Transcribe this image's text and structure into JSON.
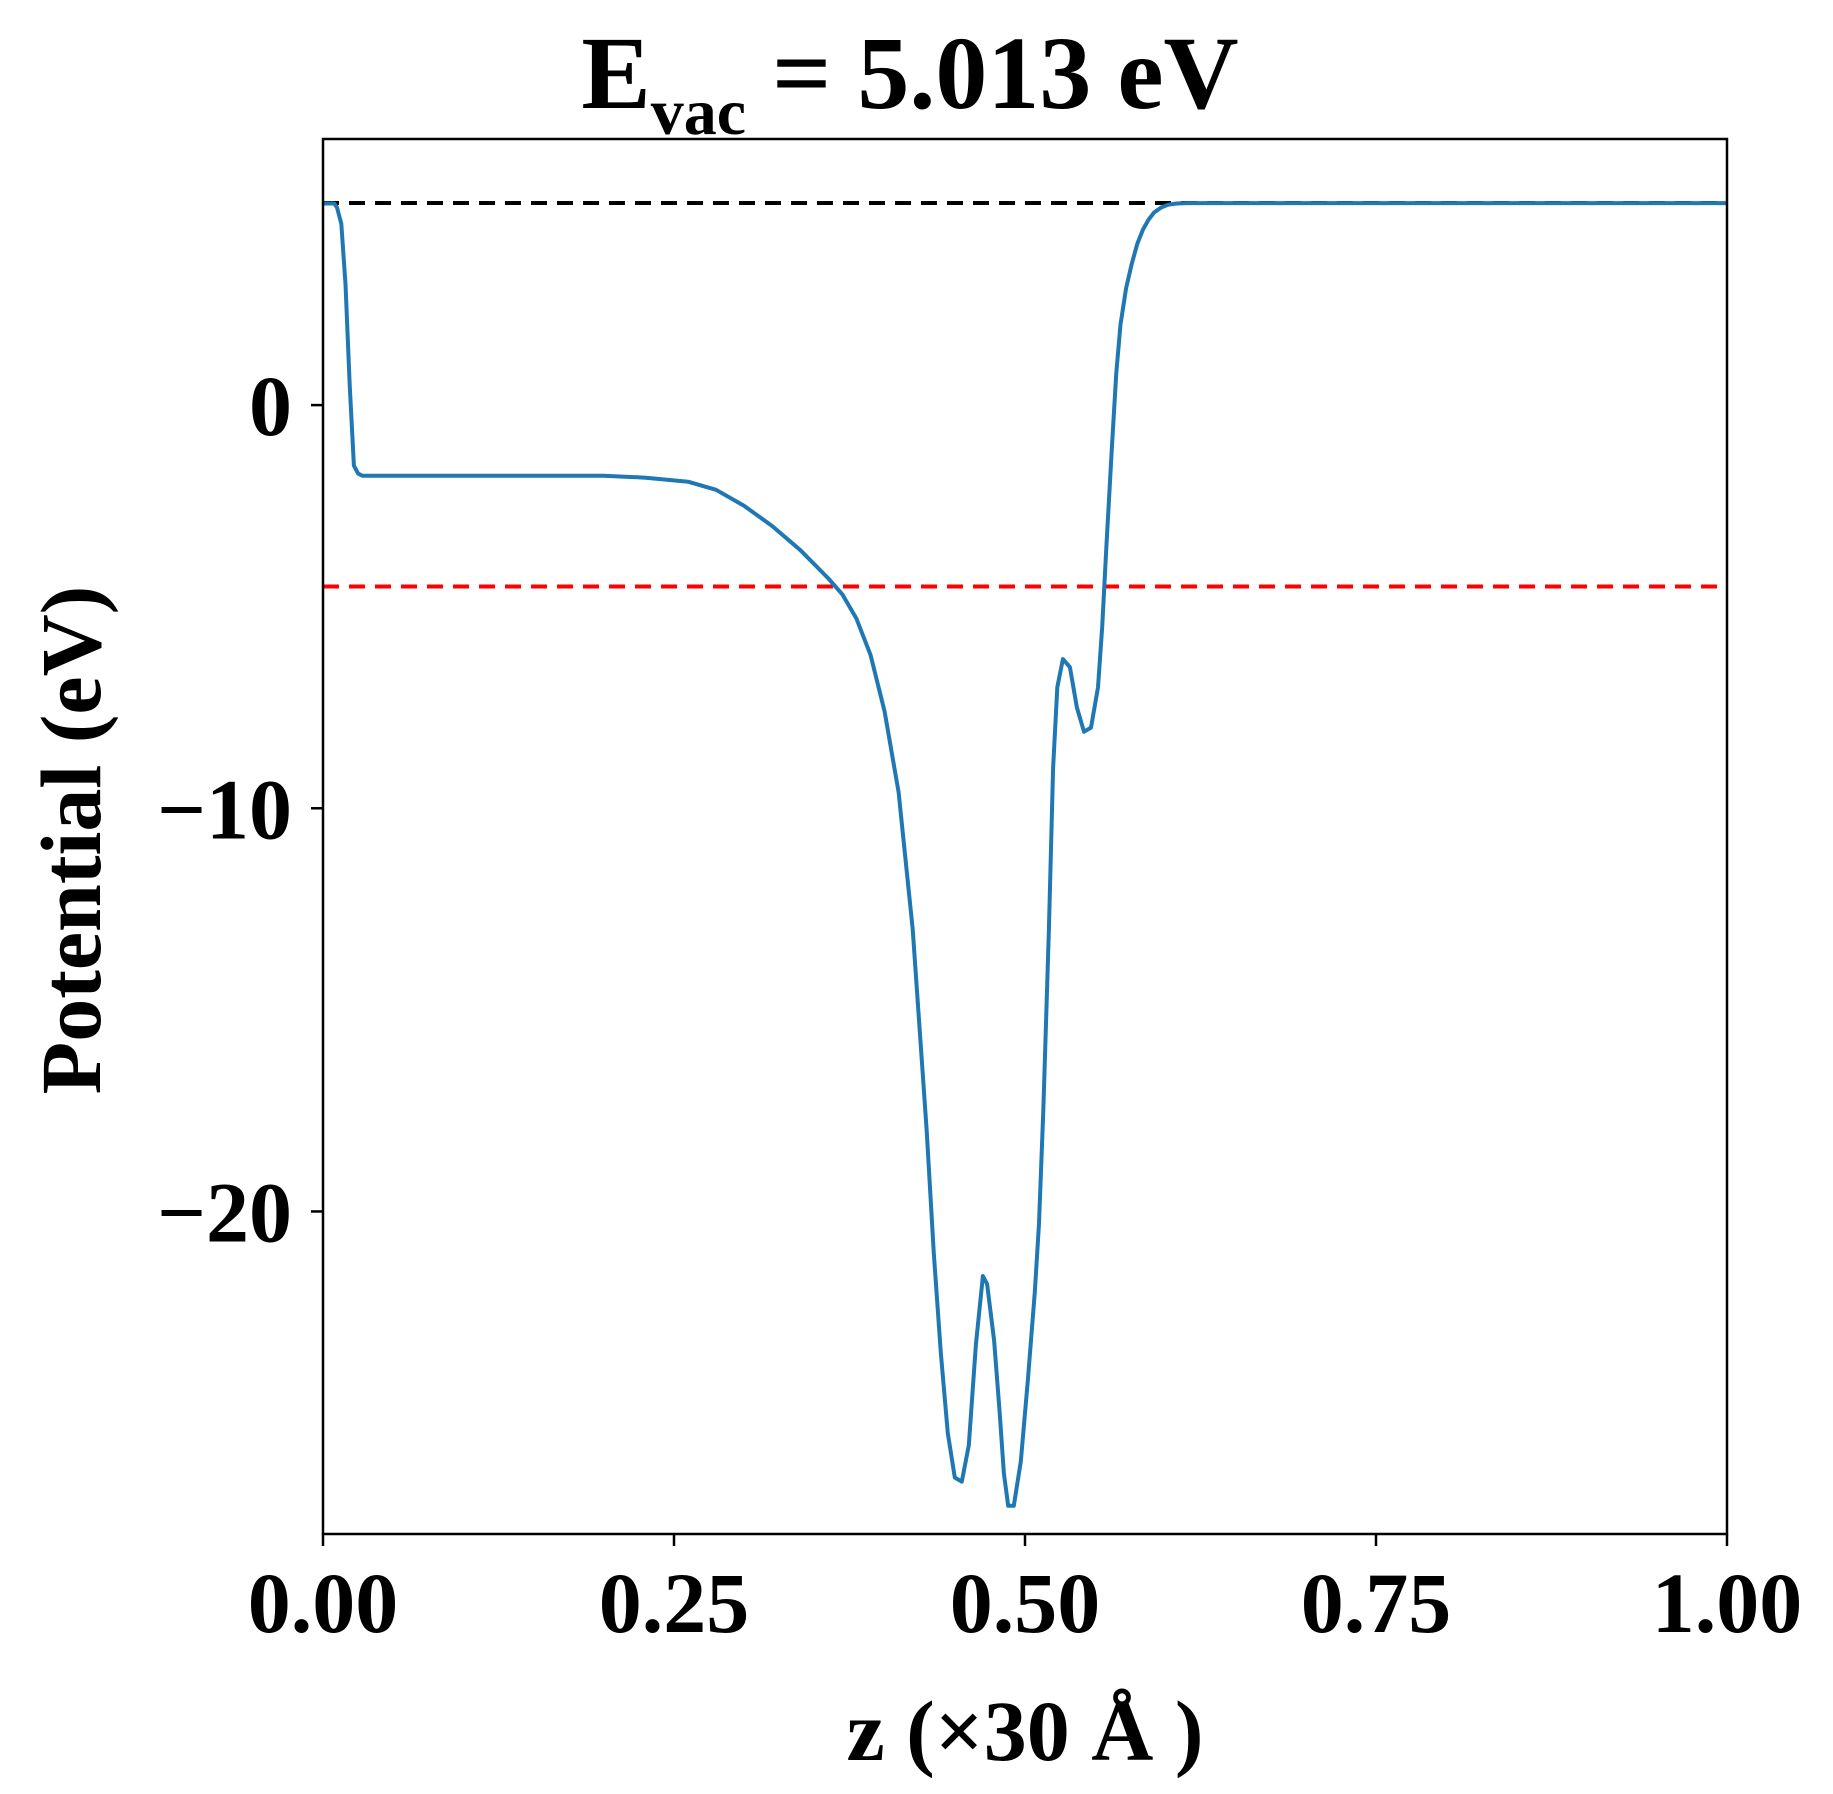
{
  "chart_data": {
    "type": "line",
    "title_main": "E",
    "title_sub": "vac",
    "title_rest": " = 5.013 eV",
    "xlabel": "z (×30 Å )",
    "ylabel": "Potential (eV)",
    "xlim": [
      0.0,
      1.0
    ],
    "ylim": [
      -28.0,
      6.6
    ],
    "xticks": [
      0.0,
      0.25,
      0.5,
      0.75,
      1.0
    ],
    "xtick_labels": [
      "0.00",
      "0.25",
      "0.50",
      "0.75",
      "1.00"
    ],
    "yticks": [
      0,
      -10,
      -20
    ],
    "ytick_labels": [
      "0",
      "−10",
      "−20"
    ],
    "grid": false,
    "colors": {
      "line": "#1f77b4",
      "vacuum_ref": "#000000",
      "fermi_ref": "#ff0000",
      "axes": "#000000"
    },
    "reference_lines": [
      {
        "y": 5.013,
        "color": "#000000",
        "style": "dashed"
      },
      {
        "y": -4.5,
        "color": "#ff0000",
        "style": "dashed"
      }
    ],
    "series": [
      {
        "x": [
          0.0,
          0.008,
          0.01,
          0.013,
          0.016,
          0.019,
          0.022,
          0.025,
          0.028,
          0.03,
          0.035,
          0.05,
          0.1,
          0.15,
          0.2,
          0.23,
          0.26,
          0.28,
          0.3,
          0.32,
          0.34,
          0.36,
          0.37,
          0.38,
          0.39,
          0.4,
          0.41,
          0.42,
          0.43,
          0.435,
          0.44,
          0.445,
          0.45,
          0.455,
          0.46,
          0.465,
          0.47,
          0.473,
          0.478,
          0.482,
          0.485,
          0.488,
          0.492,
          0.497,
          0.502,
          0.507,
          0.51,
          0.513,
          0.517,
          0.52,
          0.523,
          0.527,
          0.532,
          0.537,
          0.542,
          0.547,
          0.552,
          0.555,
          0.558,
          0.562,
          0.565,
          0.568,
          0.572,
          0.576,
          0.58,
          0.584,
          0.588,
          0.592,
          0.597,
          0.602,
          0.608,
          0.615,
          0.625,
          0.64,
          0.66,
          0.68,
          0.7,
          0.72,
          0.74,
          0.76,
          0.8,
          0.85,
          0.9,
          0.95,
          1.0
        ],
        "y": [
          5.0,
          5.0,
          4.9,
          4.5,
          3.0,
          0.5,
          -1.5,
          -1.7,
          -1.75,
          -1.75,
          -1.75,
          -1.75,
          -1.75,
          -1.75,
          -1.75,
          -1.8,
          -1.9,
          -2.1,
          -2.5,
          -3.0,
          -3.6,
          -4.3,
          -4.7,
          -5.3,
          -6.2,
          -7.6,
          -9.6,
          -13.0,
          -18.0,
          -21.0,
          -23.5,
          -25.5,
          -26.6,
          -26.7,
          -25.8,
          -23.3,
          -21.6,
          -21.8,
          -23.2,
          -25.0,
          -26.5,
          -27.3,
          -27.3,
          -26.2,
          -24.2,
          -22.0,
          -20.3,
          -17.5,
          -13.0,
          -9.0,
          -7.0,
          -6.3,
          -6.5,
          -7.5,
          -8.1,
          -8.0,
          -7.0,
          -5.5,
          -3.5,
          -1.0,
          0.8,
          2.0,
          2.9,
          3.5,
          4.0,
          4.35,
          4.6,
          4.78,
          4.9,
          4.97,
          5.0,
          5.01,
          5.01,
          5.01,
          5.01,
          5.01,
          5.01,
          5.01,
          5.01,
          5.01,
          5.01,
          5.01,
          5.01,
          5.01,
          5.01
        ]
      }
    ]
  }
}
